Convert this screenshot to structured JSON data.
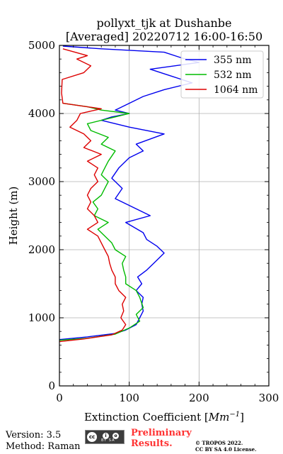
{
  "chart_data": {
    "type": "line",
    "title_line1": "pollyxt_tjk at Dushanbe",
    "title_line2": "[Averaged] 20220712 16:00-16:50",
    "xlabel": "Extinction Coefficient [",
    "xlabel_unit": "Mm",
    "xlabel_sup": "−1",
    "xlabel_close": "]",
    "ylabel": "Height (m)",
    "xlim": [
      0,
      300
    ],
    "ylim": [
      0,
      5000
    ],
    "xticks": [
      "0",
      "100",
      "200",
      "300"
    ],
    "yticks": [
      "0",
      "1000",
      "2000",
      "3000",
      "4000",
      "5000"
    ],
    "grid": true,
    "legend_position": "top-right",
    "series": [
      {
        "name": "355 nm",
        "color": "#0000ee",
        "points": [
          [
            0,
            680
          ],
          [
            40,
            720
          ],
          [
            80,
            770
          ],
          [
            95,
            820
          ],
          [
            110,
            900
          ],
          [
            115,
            1000
          ],
          [
            120,
            1100
          ],
          [
            118,
            1200
          ],
          [
            120,
            1300
          ],
          [
            110,
            1400
          ],
          [
            118,
            1500
          ],
          [
            112,
            1600
          ],
          [
            125,
            1700
          ],
          [
            135,
            1800
          ],
          [
            150,
            1950
          ],
          [
            140,
            2050
          ],
          [
            125,
            2150
          ],
          [
            120,
            2250
          ],
          [
            95,
            2400
          ],
          [
            130,
            2500
          ],
          [
            110,
            2600
          ],
          [
            80,
            2750
          ],
          [
            90,
            2900
          ],
          [
            75,
            3050
          ],
          [
            85,
            3200
          ],
          [
            100,
            3350
          ],
          [
            120,
            3450
          ],
          [
            110,
            3550
          ],
          [
            150,
            3700
          ],
          [
            100,
            3800
          ],
          [
            60,
            3900
          ],
          [
            75,
            3950
          ],
          [
            100,
            4000
          ],
          [
            80,
            4050
          ],
          [
            100,
            4150
          ],
          [
            120,
            4250
          ],
          [
            150,
            4350
          ],
          [
            190,
            4450
          ],
          [
            160,
            4550
          ],
          [
            130,
            4650
          ],
          [
            200,
            4750
          ],
          [
            180,
            4800
          ],
          [
            150,
            4900
          ],
          [
            60,
            4950
          ],
          [
            5,
            4990
          ]
        ]
      },
      {
        "name": "532 nm",
        "color": "#00bb00",
        "points": [
          [
            0,
            670
          ],
          [
            40,
            700
          ],
          [
            80,
            760
          ],
          [
            100,
            850
          ],
          [
            115,
            950
          ],
          [
            110,
            1050
          ],
          [
            120,
            1150
          ],
          [
            115,
            1300
          ],
          [
            110,
            1400
          ],
          [
            95,
            1500
          ],
          [
            95,
            1600
          ],
          [
            92,
            1700
          ],
          [
            90,
            1800
          ],
          [
            95,
            1900
          ],
          [
            80,
            2000
          ],
          [
            75,
            2100
          ],
          [
            65,
            2200
          ],
          [
            55,
            2300
          ],
          [
            70,
            2400
          ],
          [
            50,
            2500
          ],
          [
            55,
            2600
          ],
          [
            48,
            2700
          ],
          [
            60,
            2800
          ],
          [
            65,
            2900
          ],
          [
            70,
            3000
          ],
          [
            60,
            3100
          ],
          [
            65,
            3200
          ],
          [
            70,
            3300
          ],
          [
            80,
            3450
          ],
          [
            60,
            3550
          ],
          [
            70,
            3650
          ],
          [
            45,
            3750
          ],
          [
            40,
            3850
          ],
          [
            80,
            3950
          ],
          [
            100,
            4000
          ],
          [
            60,
            4050
          ],
          [
            40,
            4100
          ],
          [
            5,
            4150
          ]
        ]
      },
      {
        "name": "1064 nm",
        "color": "#dd0000",
        "points": [
          [
            0,
            650
          ],
          [
            35,
            690
          ],
          [
            75,
            750
          ],
          [
            90,
            820
          ],
          [
            95,
            900
          ],
          [
            88,
            1000
          ],
          [
            92,
            1100
          ],
          [
            90,
            1200
          ],
          [
            95,
            1300
          ],
          [
            85,
            1400
          ],
          [
            80,
            1500
          ],
          [
            80,
            1600
          ],
          [
            75,
            1700
          ],
          [
            72,
            1800
          ],
          [
            70,
            1900
          ],
          [
            65,
            2000
          ],
          [
            60,
            2100
          ],
          [
            55,
            2200
          ],
          [
            40,
            2300
          ],
          [
            55,
            2400
          ],
          [
            50,
            2500
          ],
          [
            40,
            2600
          ],
          [
            45,
            2700
          ],
          [
            40,
            2800
          ],
          [
            45,
            2900
          ],
          [
            55,
            3000
          ],
          [
            50,
            3100
          ],
          [
            55,
            3200
          ],
          [
            40,
            3300
          ],
          [
            60,
            3400
          ],
          [
            35,
            3500
          ],
          [
            45,
            3600
          ],
          [
            35,
            3700
          ],
          [
            15,
            3800
          ],
          [
            25,
            3900
          ],
          [
            30,
            4000
          ],
          [
            60,
            4070
          ],
          [
            5,
            4150
          ],
          [
            3,
            4300
          ],
          [
            4,
            4500
          ],
          [
            35,
            4600
          ],
          [
            45,
            4700
          ],
          [
            25,
            4800
          ],
          [
            40,
            4850
          ],
          [
            5,
            4950
          ]
        ]
      }
    ]
  },
  "footer": {
    "version": "Version: 3.5",
    "method": "Method: Raman",
    "badge_text": "BY SA",
    "preliminary_line1": "Preliminary",
    "preliminary_line2": "Results.",
    "copyright_line1": "© TROPOS 2022.",
    "copyright_line2": "CC BY SA 4.0 License."
  }
}
